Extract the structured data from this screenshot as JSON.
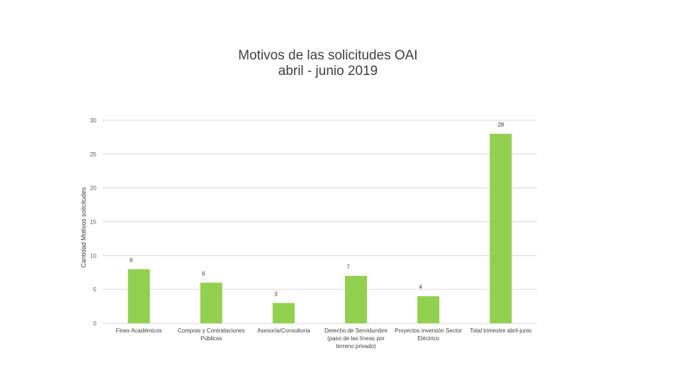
{
  "chart_data": {
    "type": "bar",
    "title": "Motivos de las solicitudes OAI",
    "subtitle": "abril - junio 2019",
    "xlabel": "",
    "ylabel": "Cantidad Motivos solicitudes",
    "ylim": [
      0,
      30
    ],
    "yticks": [
      0,
      5,
      10,
      15,
      20,
      25,
      30
    ],
    "grid": true,
    "categories": [
      [
        "Fines Académicos"
      ],
      [
        "Compras y Contrataciones",
        "Públicas"
      ],
      [
        "Asesoría/Consultoría"
      ],
      [
        "Derecho de Servidumbre",
        "(paso de las líneas por",
        "terreno privado)"
      ],
      [
        "Proyectos inversión Sector",
        "Eléctrico"
      ],
      [
        "Total trimestre abril-junio"
      ]
    ],
    "values": [
      8,
      6,
      3,
      7,
      4,
      28
    ],
    "data_labels": [
      "8",
      "6",
      "3",
      "7",
      "4",
      "28"
    ],
    "bar_color": "#92d050",
    "grid_color": "#d9d9d9"
  }
}
